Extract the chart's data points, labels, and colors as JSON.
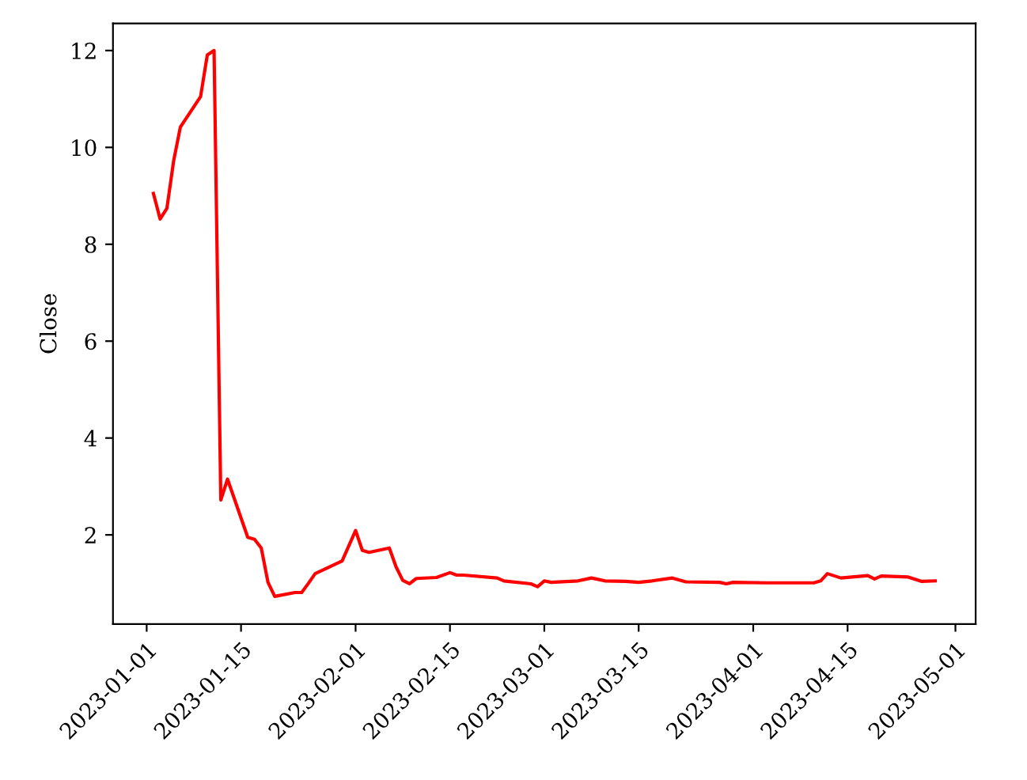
{
  "chart_data": {
    "type": "line",
    "ylabel": "Close",
    "x": [
      "2023-01-02",
      "2023-01-03",
      "2023-01-04",
      "2023-01-05",
      "2023-01-06",
      "2023-01-09",
      "2023-01-10",
      "2023-01-11",
      "2023-01-12",
      "2023-01-13",
      "2023-01-16",
      "2023-01-17",
      "2023-01-18",
      "2023-01-19",
      "2023-01-20",
      "2023-01-23",
      "2023-01-24",
      "2023-01-25",
      "2023-01-26",
      "2023-01-30",
      "2023-02-01",
      "2023-02-02",
      "2023-02-03",
      "2023-02-06",
      "2023-02-07",
      "2023-02-08",
      "2023-02-09",
      "2023-02-10",
      "2023-02-13",
      "2023-02-15",
      "2023-02-16",
      "2023-02-17",
      "2023-02-22",
      "2023-02-23",
      "2023-02-27",
      "2023-02-28",
      "2023-03-01",
      "2023-03-02",
      "2023-03-06",
      "2023-03-08",
      "2023-03-10",
      "2023-03-13",
      "2023-03-15",
      "2023-03-17",
      "2023-03-20",
      "2023-03-22",
      "2023-03-27",
      "2023-03-28",
      "2023-03-29",
      "2023-04-03",
      "2023-04-10",
      "2023-04-11",
      "2023-04-12",
      "2023-04-14",
      "2023-04-18",
      "2023-04-19",
      "2023-04-20",
      "2023-04-24",
      "2023-04-26",
      "2023-04-28"
    ],
    "series": [
      {
        "color": "#ff0000",
        "values": [
          9.05,
          8.52,
          8.74,
          9.72,
          10.42,
          11.05,
          11.91,
          12.0,
          2.72,
          3.15,
          1.95,
          1.91,
          1.73,
          1.02,
          0.73,
          0.81,
          0.81,
          1.0,
          1.2,
          1.46,
          2.09,
          1.68,
          1.64,
          1.73,
          1.34,
          1.06,
          0.99,
          1.1,
          1.12,
          1.22,
          1.17,
          1.17,
          1.11,
          1.05,
          0.99,
          0.93,
          1.05,
          1.02,
          1.05,
          1.11,
          1.05,
          1.04,
          1.02,
          1.05,
          1.11,
          1.03,
          1.02,
          0.99,
          1.02,
          1.01,
          1.01,
          1.05,
          1.2,
          1.11,
          1.16,
          1.09,
          1.15,
          1.13,
          1.04,
          1.05
        ]
      }
    ],
    "xlim": [
      "2022-12-27",
      "2023-05-04"
    ],
    "xticks": [
      {
        "value": "2023-01-01",
        "label": "2023-01-01"
      },
      {
        "value": "2023-01-15",
        "label": "2023-01-15"
      },
      {
        "value": "2023-02-01",
        "label": "2023-02-01"
      },
      {
        "value": "2023-02-15",
        "label": "2023-02-15"
      },
      {
        "value": "2023-03-01",
        "label": "2023-03-01"
      },
      {
        "value": "2023-03-15",
        "label": "2023-03-15"
      },
      {
        "value": "2023-04-01",
        "label": "2023-04-01"
      },
      {
        "value": "2023-04-15",
        "label": "2023-04-15"
      },
      {
        "value": "2023-05-01",
        "label": "2023-05-01"
      }
    ],
    "ylim": [
      0.16,
      12.56
    ],
    "yticks": [
      2,
      4,
      6,
      8,
      10,
      12
    ],
    "grid": false,
    "line_style": "solid",
    "marker": "none"
  }
}
